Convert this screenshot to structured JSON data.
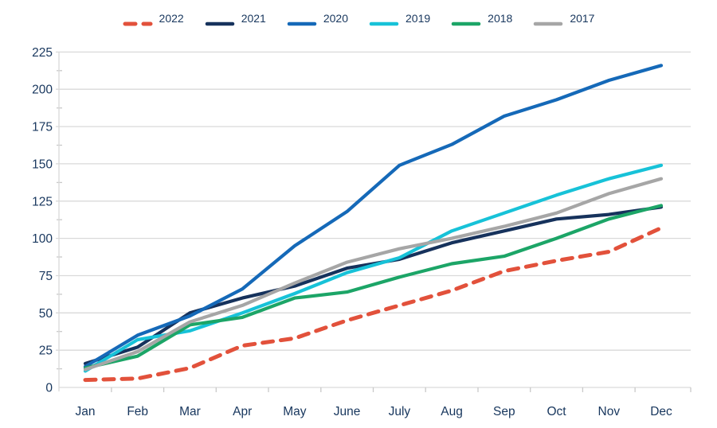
{
  "chart_data": {
    "type": "line",
    "title": "",
    "xlabel": "",
    "ylabel": "",
    "categories": [
      "Jan",
      "Feb",
      "Mar",
      "Apr",
      "May",
      "June",
      "July",
      "Aug",
      "Sep",
      "Oct",
      "Nov",
      "Dec"
    ],
    "series": [
      {
        "name": "2022",
        "color": "#E2513B",
        "dashed": true,
        "values": [
          5,
          6,
          13,
          28,
          33,
          45,
          55,
          65,
          78,
          85,
          91,
          107
        ]
      },
      {
        "name": "2021",
        "color": "#16325C",
        "dashed": false,
        "values": [
          16,
          27,
          50,
          60,
          68,
          80,
          86,
          97,
          105,
          113,
          116,
          121
        ]
      },
      {
        "name": "2020",
        "color": "#1569B8",
        "dashed": false,
        "values": [
          14,
          35,
          48,
          66,
          95,
          118,
          149,
          163,
          182,
          193,
          206,
          216
        ]
      },
      {
        "name": "2019",
        "color": "#17C2D8",
        "dashed": false,
        "values": [
          11,
          32,
          38,
          50,
          63,
          77,
          87,
          105,
          117,
          129,
          140,
          149
        ]
      },
      {
        "name": "2018",
        "color": "#1CA567",
        "dashed": false,
        "values": [
          13,
          21,
          42,
          47,
          60,
          64,
          74,
          83,
          88,
          100,
          113,
          122
        ]
      },
      {
        "name": "2017",
        "color": "#A6A6A6",
        "dashed": false,
        "values": [
          12,
          24,
          44,
          55,
          70,
          84,
          93,
          100,
          108,
          117,
          130,
          140
        ]
      }
    ],
    "ylim": [
      0,
      225
    ],
    "yticks": [
      0,
      25,
      50,
      75,
      100,
      125,
      150,
      175,
      200,
      225
    ],
    "grid": "horizontal",
    "legend_position": "top",
    "axis_text_color": "#17365D",
    "gridline_color": "#D9D9D9",
    "tick_color": "#C9C9C9"
  }
}
